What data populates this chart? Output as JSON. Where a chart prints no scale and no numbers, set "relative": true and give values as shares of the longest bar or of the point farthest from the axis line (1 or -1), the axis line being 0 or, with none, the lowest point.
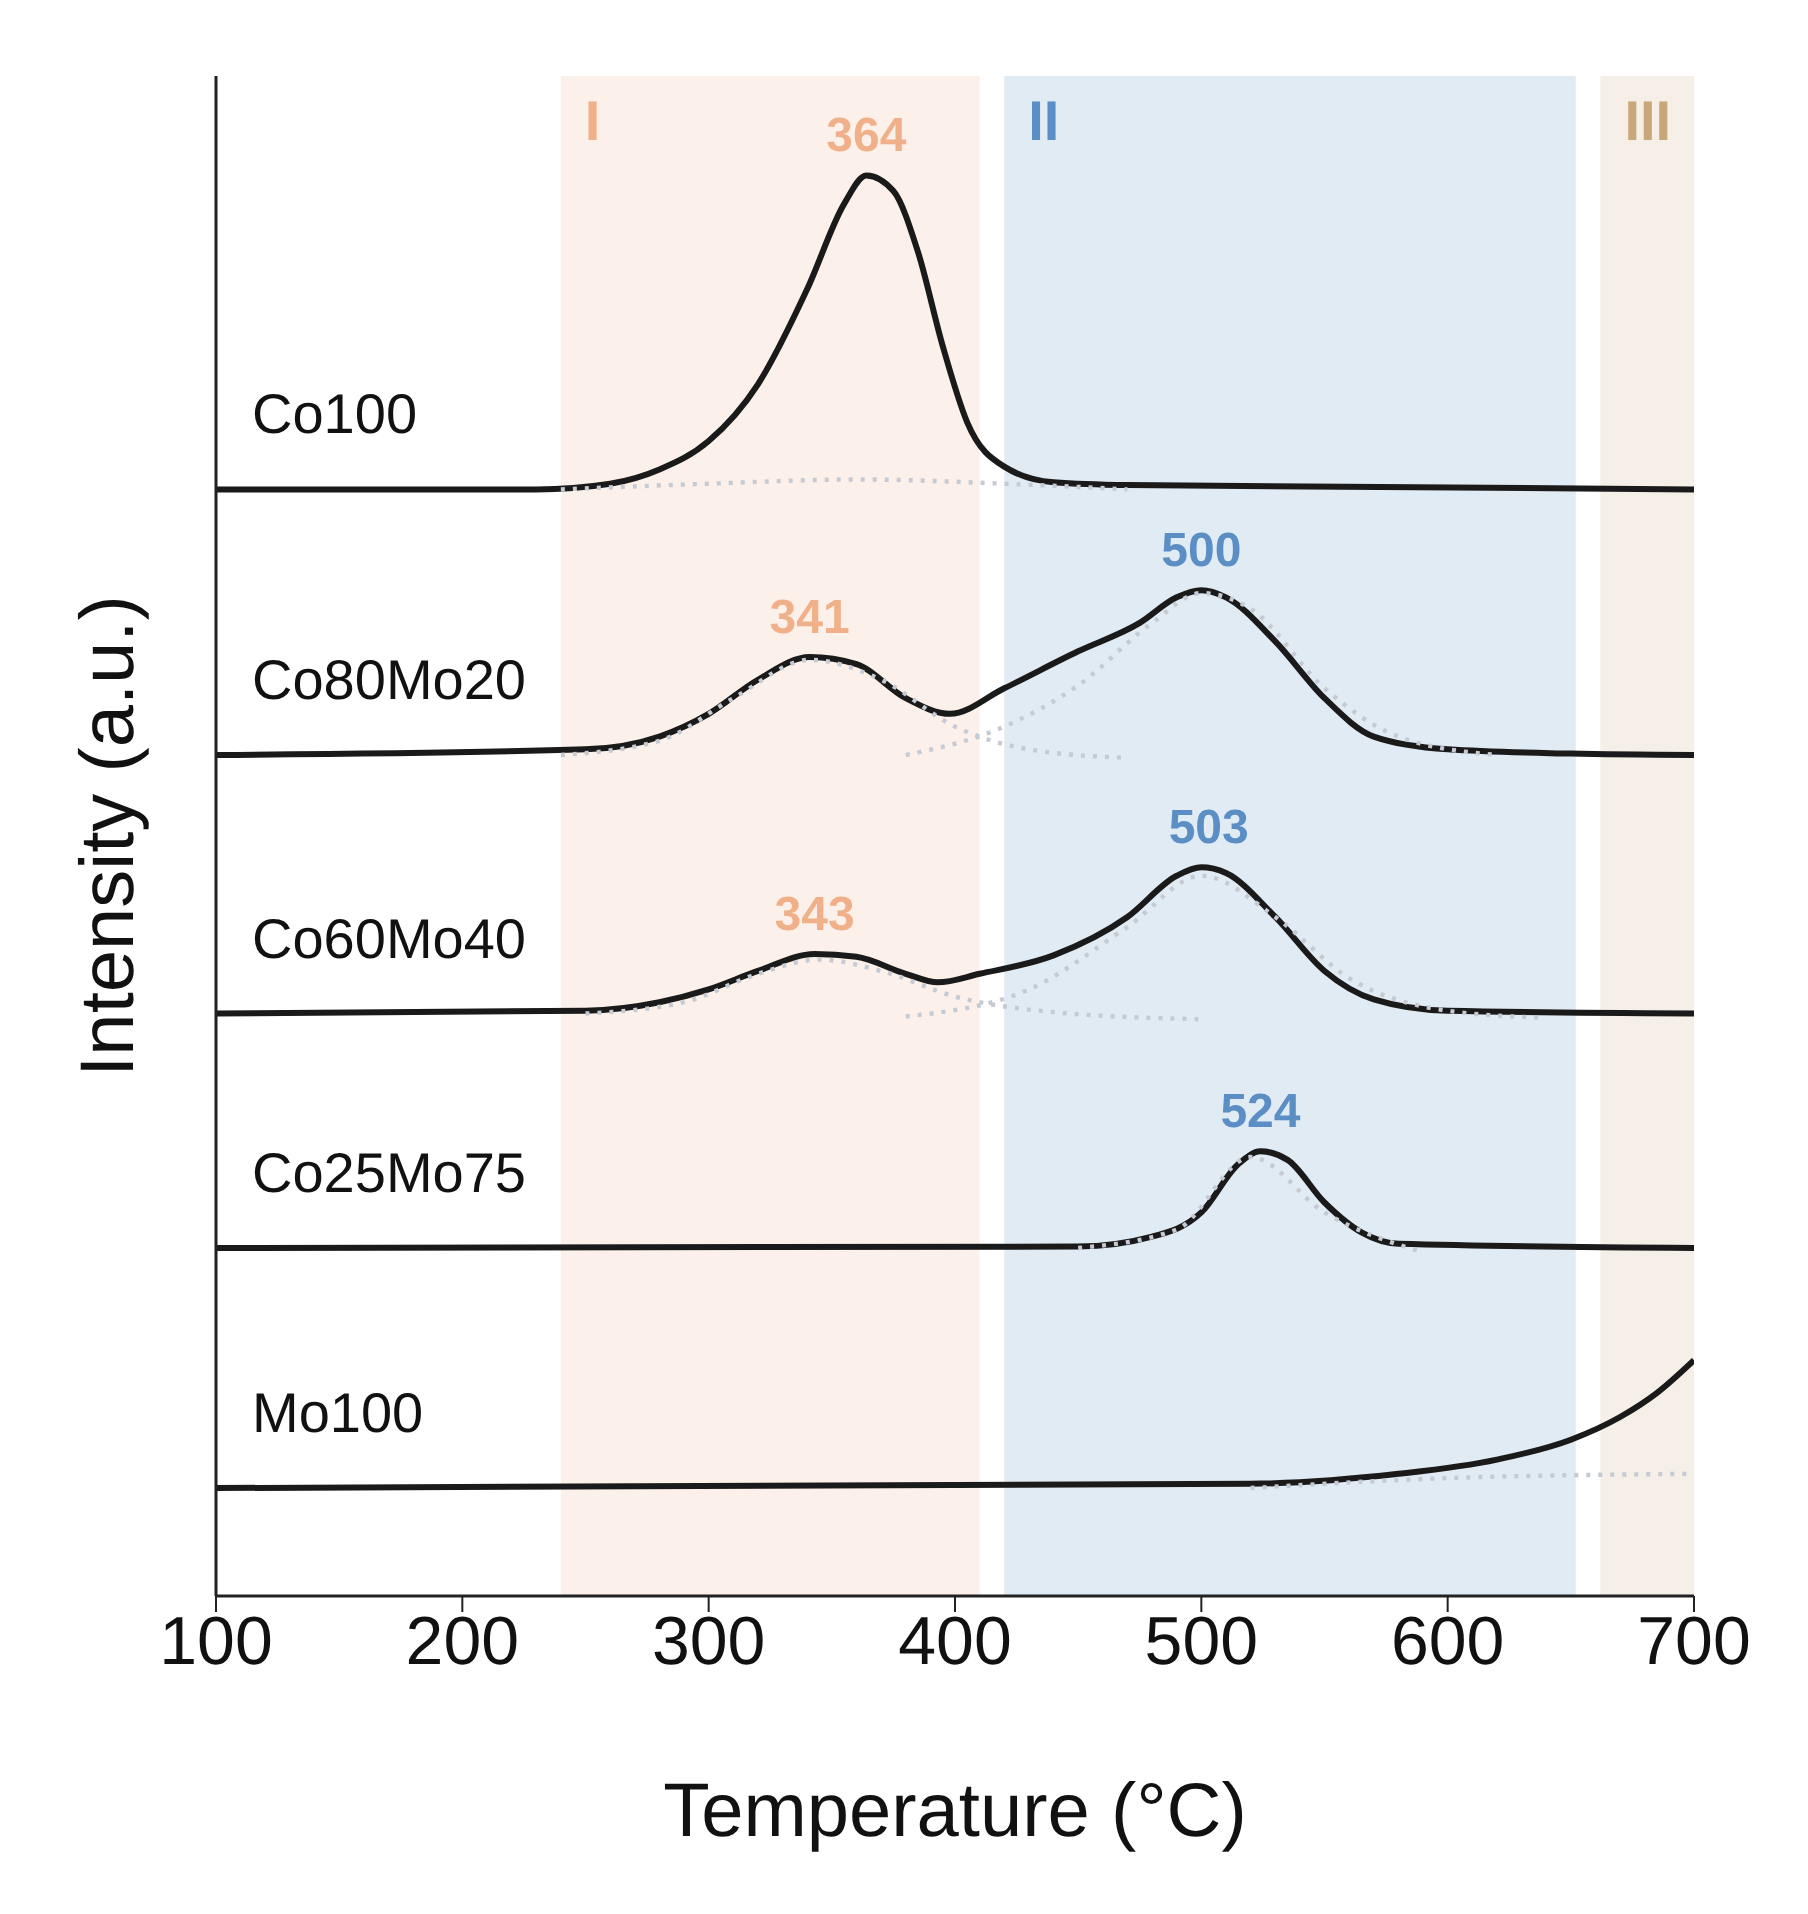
{
  "chart_data": {
    "type": "line",
    "relative": true,
    "xlabel": "Temperature (°C)",
    "ylabel": "Intensity (a.u.)",
    "xlim": [
      100,
      700
    ],
    "xticks": [
      100,
      200,
      300,
      400,
      500,
      600,
      700
    ],
    "tick_labels": "x",
    "marker": "none",
    "bands": [
      {
        "axis": "x",
        "from": 240,
        "to": 410,
        "label": "I",
        "color": "#f0b08a"
      },
      {
        "axis": "x",
        "from": 420,
        "to": 652,
        "label": "II",
        "color": "#5b8ec4"
      },
      {
        "axis": "x",
        "from": 662,
        "to": 700,
        "label": "III",
        "color": "#c8a878"
      }
    ],
    "annotations": [
      {
        "text": "364",
        "x": 364,
        "y": 1.0
      },
      {
        "text": "341",
        "x": 341,
        "y": 0.661
      },
      {
        "text": "500",
        "x": 500,
        "y": 0.708
      },
      {
        "text": "343",
        "x": 343,
        "y": 0.452
      },
      {
        "text": "503",
        "x": 503,
        "y": 0.513
      },
      {
        "text": "524",
        "x": 524,
        "y": 0.313
      }
    ],
    "series": [
      {
        "name": "Co100",
        "color": "#1a1a1a",
        "line_style": "solid",
        "x": [
          100,
          230,
          260,
          280,
          300,
          320,
          340,
          355,
          364,
          375,
          385,
          395,
          405,
          420,
          440,
          470,
          700
        ],
        "values": [
          0.779,
          0.779,
          0.783,
          0.793,
          0.813,
          0.853,
          0.92,
          0.98,
          1.0,
          0.989,
          0.946,
          0.88,
          0.826,
          0.795,
          0.784,
          0.782,
          0.779
        ]
      },
      {
        "name": "Co80Mo20",
        "color": "#1a1a1a",
        "line_style": "solid",
        "x": [
          100,
          250,
          280,
          300,
          320,
          341,
          360,
          380,
          398,
          420,
          450,
          475,
          490,
          500,
          510,
          530,
          550,
          570,
          600,
          650,
          700
        ],
        "values": [
          0.592,
          0.596,
          0.605,
          0.621,
          0.645,
          0.661,
          0.656,
          0.632,
          0.621,
          0.639,
          0.665,
          0.685,
          0.703,
          0.708,
          0.703,
          0.672,
          0.632,
          0.605,
          0.596,
          0.593,
          0.592
        ]
      },
      {
        "name": "Co60Mo40",
        "color": "#1a1a1a",
        "line_style": "solid",
        "x": [
          100,
          250,
          280,
          300,
          320,
          343,
          360,
          380,
          393,
          410,
          440,
          470,
          490,
          500,
          510,
          530,
          550,
          570,
          600,
          700
        ],
        "values": [
          0.41,
          0.412,
          0.418,
          0.427,
          0.44,
          0.452,
          0.45,
          0.438,
          0.432,
          0.438,
          0.451,
          0.478,
          0.507,
          0.513,
          0.509,
          0.478,
          0.44,
          0.42,
          0.412,
          0.41
        ]
      },
      {
        "name": "Co25Mo75",
        "color": "#1a1a1a",
        "line_style": "solid",
        "x": [
          100,
          450,
          480,
          500,
          515,
          524,
          535,
          550,
          565,
          580,
          700
        ],
        "values": [
          0.245,
          0.246,
          0.253,
          0.27,
          0.304,
          0.313,
          0.307,
          0.277,
          0.256,
          0.248,
          0.245
        ]
      },
      {
        "name": "Mo100",
        "color": "#1a1a1a",
        "line_style": "solid",
        "x": [
          100,
          520,
          580,
          620,
          650,
          670,
          685,
          700
        ],
        "values": [
          0.076,
          0.079,
          0.086,
          0.096,
          0.11,
          0.126,
          0.143,
          0.166
        ]
      },
      {
        "color": "#c5cad3",
        "line_style": "dotted",
        "x": [
          240,
          300,
          360,
          420,
          470
        ],
        "values": [
          0.779,
          0.783,
          0.786,
          0.783,
          0.779
        ]
      },
      {
        "color": "#c5cad3",
        "line_style": "dotted",
        "x": [
          240,
          280,
          310,
          341,
          370,
          400,
          430,
          470
        ],
        "values": [
          0.592,
          0.602,
          0.632,
          0.659,
          0.645,
          0.612,
          0.596,
          0.59
        ]
      },
      {
        "color": "#c5cad3",
        "line_style": "dotted",
        "x": [
          380,
          420,
          450,
          480,
          500,
          520,
          550,
          580,
          620
        ],
        "values": [
          0.592,
          0.612,
          0.641,
          0.685,
          0.706,
          0.695,
          0.639,
          0.605,
          0.592
        ]
      },
      {
        "color": "#c5cad3",
        "line_style": "dotted",
        "x": [
          250,
          290,
          320,
          345,
          370,
          400,
          440,
          500
        ],
        "values": [
          0.41,
          0.418,
          0.438,
          0.448,
          0.44,
          0.422,
          0.411,
          0.406
        ]
      },
      {
        "color": "#c5cad3",
        "line_style": "dotted",
        "x": [
          380,
          430,
          470,
          500,
          530,
          560,
          600,
          640
        ],
        "values": [
          0.408,
          0.427,
          0.471,
          0.507,
          0.478,
          0.435,
          0.412,
          0.407
        ]
      },
      {
        "color": "#c5cad3",
        "line_style": "dotted",
        "x": [
          450,
          490,
          520,
          550,
          590
        ],
        "values": [
          0.245,
          0.258,
          0.309,
          0.27,
          0.242
        ]
      },
      {
        "color": "#c5cad3",
        "line_style": "dotted",
        "x": [
          520,
          600,
          700
        ],
        "values": [
          0.076,
          0.083,
          0.086
        ]
      }
    ]
  }
}
